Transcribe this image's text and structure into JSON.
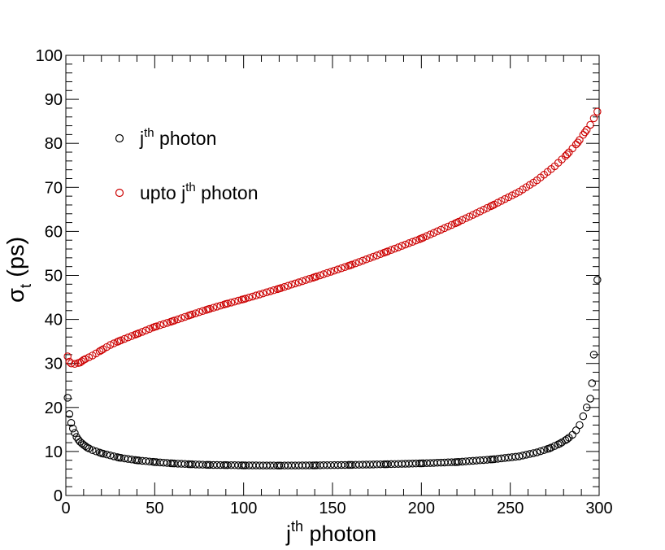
{
  "chart_data": {
    "type": "scatter",
    "title": "",
    "xlabel": "j",
    "xlabel_sup": "th",
    "xlabel_suffix": " photon",
    "ylabel": "σ",
    "ylabel_sub": "t",
    "ylabel_suffix": " (ps)",
    "xlim": [
      0,
      300
    ],
    "ylim": [
      0,
      100
    ],
    "x_ticks": [
      0,
      50,
      100,
      150,
      200,
      250,
      300
    ],
    "y_ticks": [
      0,
      10,
      20,
      30,
      40,
      50,
      60,
      70,
      80,
      90,
      100
    ],
    "x_minor_step": 10,
    "y_minor_step": 2,
    "x_tick_labels": [
      "0",
      "50",
      "100",
      "150",
      "200",
      "250",
      "300"
    ],
    "y_tick_labels": [
      "0",
      "10",
      "20",
      "30",
      "40",
      "50",
      "60",
      "70",
      "80",
      "90",
      "100"
    ],
    "grid": false,
    "legend_position": "top-left",
    "series": [
      {
        "name": "j",
        "name_sup": "th",
        "name_suffix": " photon",
        "color": "#000000",
        "marker": "open-circle",
        "x_start": 1,
        "x_end": 299,
        "x_step": 2,
        "anchors": [
          [
            1,
            22.2
          ],
          [
            2,
            18.5
          ],
          [
            3,
            16.5
          ],
          [
            4,
            15.2
          ],
          [
            5,
            14.2
          ],
          [
            6,
            13.3
          ],
          [
            7,
            12.7
          ],
          [
            8,
            12.2
          ],
          [
            10,
            11.5
          ],
          [
            12,
            10.9
          ],
          [
            15,
            10.3
          ],
          [
            20,
            9.6
          ],
          [
            25,
            9.1
          ],
          [
            30,
            8.6
          ],
          [
            40,
            8.0
          ],
          [
            50,
            7.6
          ],
          [
            60,
            7.3
          ],
          [
            70,
            7.1
          ],
          [
            80,
            6.95
          ],
          [
            90,
            6.9
          ],
          [
            100,
            6.85
          ],
          [
            120,
            6.8
          ],
          [
            140,
            6.85
          ],
          [
            160,
            6.95
          ],
          [
            180,
            7.1
          ],
          [
            200,
            7.3
          ],
          [
            220,
            7.6
          ],
          [
            240,
            8.2
          ],
          [
            255,
            8.9
          ],
          [
            265,
            9.8
          ],
          [
            272,
            10.7
          ],
          [
            278,
            11.8
          ],
          [
            282,
            12.8
          ],
          [
            285,
            13.8
          ],
          [
            287,
            14.8
          ],
          [
            289,
            16.0
          ],
          [
            291,
            18.0
          ],
          [
            293,
            20.0
          ],
          [
            295,
            22.0
          ],
          [
            296,
            25.5
          ],
          [
            297,
            32.0
          ],
          [
            299,
            49.0
          ]
        ]
      },
      {
        "name": "upto j",
        "name_sup": "th",
        "name_suffix": " photon",
        "color": "#cc0000",
        "marker": "open-circle",
        "x_start": 1,
        "x_end": 299,
        "x_step": 2,
        "anchors": [
          [
            1,
            31.6
          ],
          [
            2,
            30.4
          ],
          [
            3,
            30.0
          ],
          [
            5,
            29.9
          ],
          [
            8,
            30.2
          ],
          [
            10,
            30.8
          ],
          [
            15,
            31.8
          ],
          [
            20,
            33.0
          ],
          [
            25,
            34.2
          ],
          [
            30,
            35.1
          ],
          [
            40,
            36.7
          ],
          [
            50,
            38.3
          ],
          [
            60,
            39.6
          ],
          [
            70,
            41.0
          ],
          [
            80,
            42.3
          ],
          [
            90,
            43.5
          ],
          [
            100,
            44.6
          ],
          [
            120,
            47.0
          ],
          [
            140,
            49.6
          ],
          [
            160,
            52.3
          ],
          [
            180,
            55.3
          ],
          [
            200,
            58.4
          ],
          [
            220,
            62.0
          ],
          [
            240,
            65.9
          ],
          [
            255,
            69.0
          ],
          [
            265,
            71.6
          ],
          [
            275,
            74.8
          ],
          [
            282,
            77.5
          ],
          [
            288,
            80.2
          ],
          [
            292,
            82.5
          ],
          [
            295,
            84.2
          ],
          [
            297,
            85.7
          ],
          [
            299,
            87.2
          ]
        ]
      }
    ]
  }
}
